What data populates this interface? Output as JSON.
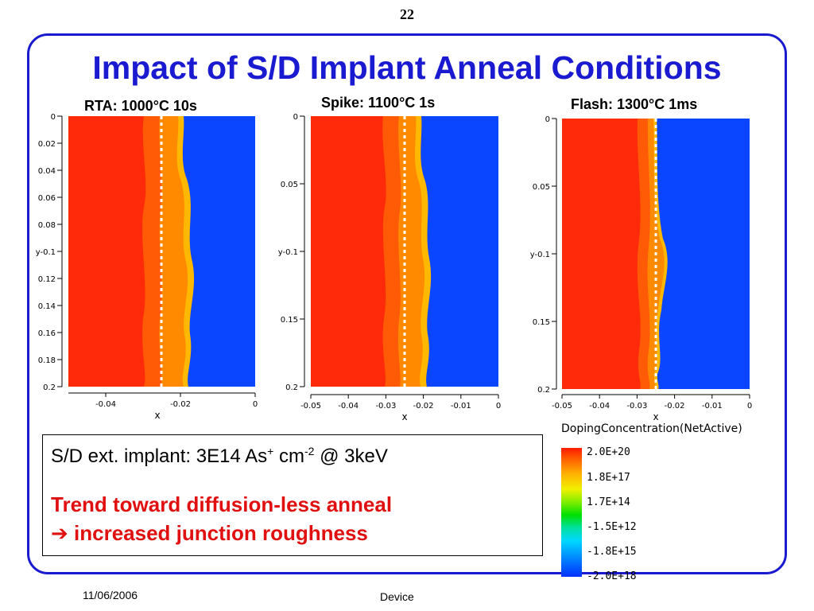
{
  "slide": {
    "number": "22",
    "title": "Impact of S/D Implant Anneal Conditions",
    "footer_date": "11/06/2006",
    "footer_center": "Device"
  },
  "plots": [
    {
      "label": "RTA: 1000°C 10s",
      "x_ticks": [
        "-0.04",
        "-0.02",
        "0"
      ],
      "y_ticks": [
        "0",
        "0.02",
        "0.04",
        "0.06",
        "0.08",
        "y-0.1",
        "0.12",
        "0.14",
        "0.16",
        "0.18",
        "0.2"
      ],
      "xlabel": "x",
      "mask_depth": -0.025
    },
    {
      "label": "Spike: 1100°C 1s",
      "x_ticks": [
        "-0.05",
        "-0.04",
        "-0.03",
        "-0.02",
        "-0.01",
        "0"
      ],
      "y_ticks": [
        "0",
        "0.05",
        "y-0.1",
        "0.15",
        "0.2"
      ],
      "xlabel": "x",
      "mask_depth": -0.025
    },
    {
      "label": "Flash: 1300°C 1ms",
      "x_ticks": [
        "-0.05",
        "-0.04",
        "-0.03",
        "-0.02",
        "-0.01",
        "0"
      ],
      "y_ticks": [
        "0",
        "0.05",
        "y-0.1",
        "0.15",
        "0.2"
      ],
      "xlabel": "x",
      "mask_depth": -0.025
    }
  ],
  "textbox": {
    "implant_prefix": "S/D ext. implant: 3E14 As",
    "implant_sup1": "+",
    "implant_mid": " cm",
    "implant_sup2": "-2",
    "implant_suffix": " @ 3keV",
    "trend_line1": "Trend toward diffusion-less anneal",
    "trend_line2": "➔ increased junction roughness",
    "trend_color": "#e01010"
  },
  "legend": {
    "title": "DopingConcentration(NetActive)",
    "labels": [
      "2.0E+20",
      "1.8E+17",
      "1.7E+14",
      "-1.5E+12",
      "-1.8E+15",
      "-2.0E+18"
    ]
  },
  "colors": {
    "title_blue": "#1a1ad0",
    "n_type_red": "#ff2a0a",
    "p_type_blue": "#0a46ff"
  }
}
